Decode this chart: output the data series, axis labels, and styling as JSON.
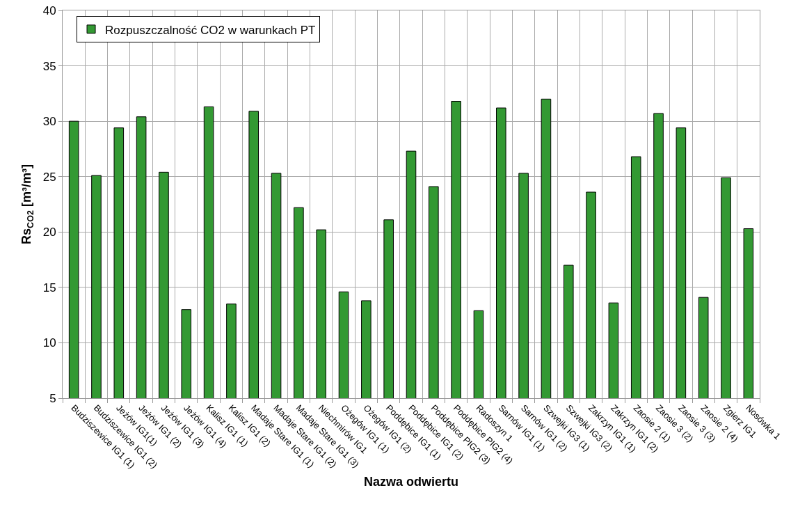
{
  "chart_data": {
    "type": "bar",
    "xlabel": "Nazwa odwiertu",
    "ylabel": "Rs$_{CO2}$ [m³/m³]",
    "categories": [
      "Budziszewice IG1 (1)",
      "Budziszewice IG1 (2)",
      "Jeżów IG1(1)",
      "Jeżów IG1 (2)",
      "Jeżów IG1 (3)",
      "Jeżów IG1 (4)",
      "Kalisz IG1 (1)",
      "Kalisz IG1 (2)",
      "Madaje Stare IG1 (1)",
      "Madaje Stare IG1 (2)",
      "Madaje Stare IG1 (3)",
      "Niechmirów IG1",
      "Ożegów IG1 (1)",
      "Ożegów IG1 (2)",
      "Poddębice IG1 (1)",
      "Poddębice IG1 (2)",
      "Poddębice PIG2 (3)",
      "Poddębice PIG2 (4)",
      "Radoszyn 1",
      "Sarnów IG1 (1)",
      "Sarnów IG1 (2)",
      "Szwejki IG3 (1)",
      "Szwejki IG3 (2)",
      "Zakrzyn IG1 (1)",
      "Zakrzyn IG1 (2)",
      "Zaosie 2 (1)",
      "Zaosie 3 (2)",
      "Zaosie 3 (3)",
      "Zaosie 2 (4)",
      "Zgierz IG1",
      "Nosówka 1"
    ],
    "series": [
      {
        "name": "Rozpuszczalność CO2 w warunkach PT",
        "color": "#339933",
        "values": [
          30.0,
          25.1,
          29.4,
          30.4,
          25.4,
          13.0,
          31.3,
          13.5,
          30.9,
          25.3,
          22.2,
          20.2,
          14.6,
          13.8,
          21.1,
          27.3,
          24.1,
          31.8,
          12.9,
          31.2,
          25.3,
          32.0,
          17.0,
          23.6,
          13.6,
          26.8,
          30.7,
          29.4,
          14.1,
          24.9,
          20.3
        ]
      }
    ],
    "ylim": [
      5,
      40
    ],
    "yticks": [
      5,
      10,
      15,
      20,
      25,
      30,
      35,
      40
    ],
    "grid": true,
    "legend": "top left"
  }
}
